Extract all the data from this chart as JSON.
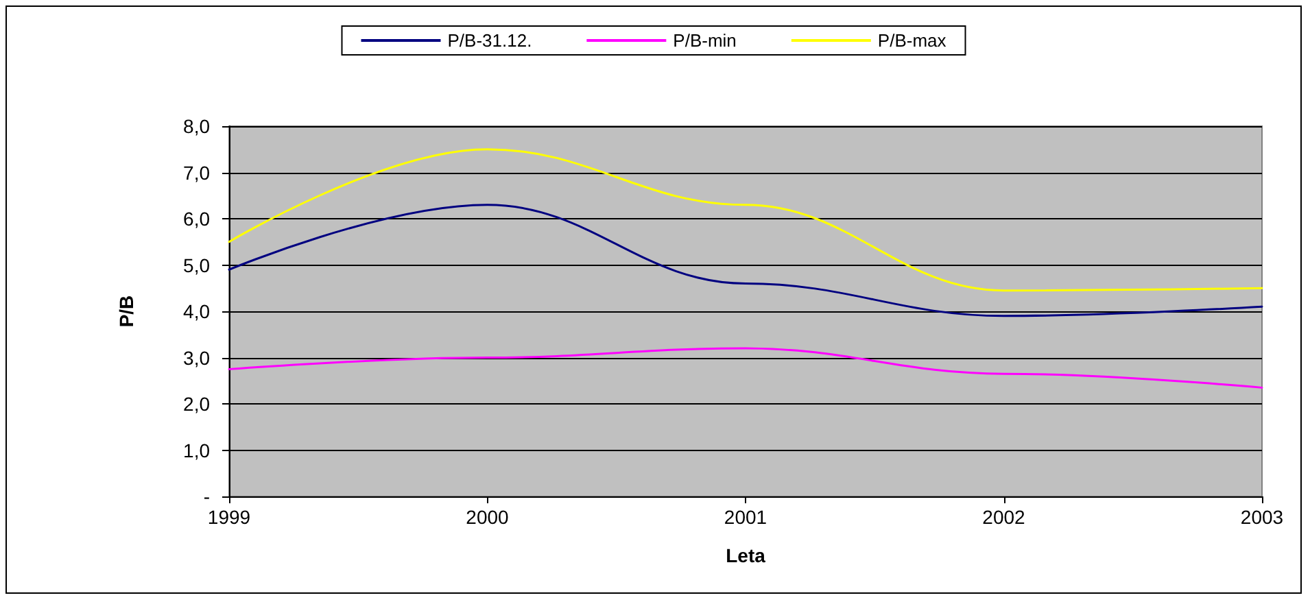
{
  "chart_data": {
    "type": "line",
    "xlabel": "Leta",
    "ylabel": "P/B",
    "categories": [
      "1999",
      "2000",
      "2001",
      "2002",
      "2003"
    ],
    "series": [
      {
        "name": "P/B-31.12.",
        "color": "#000080",
        "values": [
          4.9,
          6.3,
          4.6,
          3.9,
          4.1
        ]
      },
      {
        "name": "P/B-min",
        "color": "#ff00ff",
        "values": [
          2.75,
          3.0,
          3.2,
          2.65,
          2.35
        ]
      },
      {
        "name": "P/B-max",
        "color": "#ffff00",
        "values": [
          5.5,
          7.5,
          6.3,
          4.45,
          4.5
        ]
      }
    ],
    "ylim": [
      0,
      8
    ],
    "yticks": [
      {
        "value": 0,
        "label": "-"
      },
      {
        "value": 1,
        "label": "1,0"
      },
      {
        "value": 2,
        "label": "2,0"
      },
      {
        "value": 3,
        "label": "3,0"
      },
      {
        "value": 4,
        "label": "4,0"
      },
      {
        "value": 5,
        "label": "5,0"
      },
      {
        "value": 6,
        "label": "6,0"
      },
      {
        "value": 7,
        "label": "7,0"
      },
      {
        "value": 8,
        "label": "8,0"
      }
    ],
    "grid": "y",
    "legend": "top",
    "marker": "none",
    "line_style": "solid"
  }
}
